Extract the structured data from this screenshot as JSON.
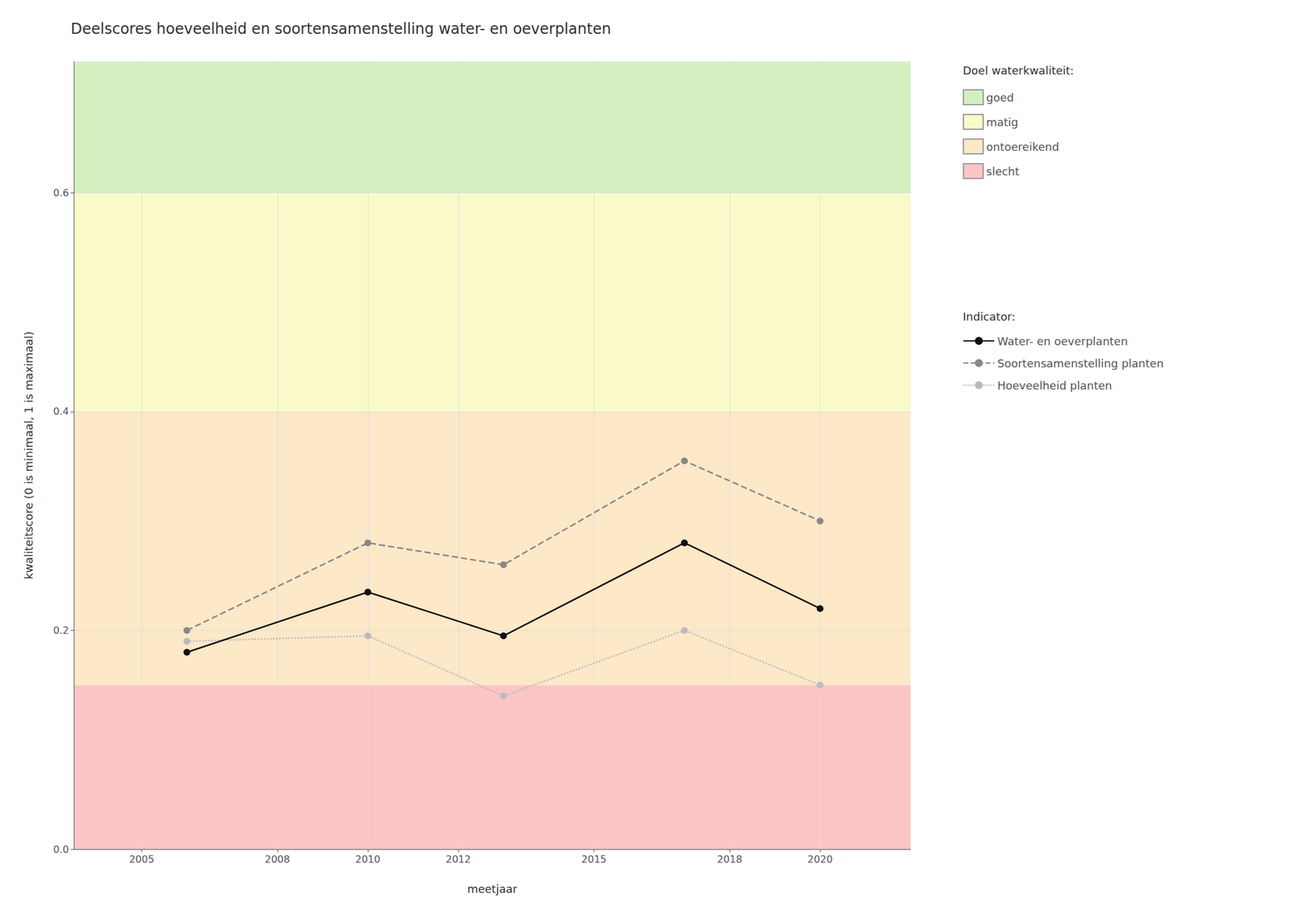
{
  "chart_data": {
    "type": "line",
    "title": "Deelscores hoeveelheid en soortensamenstelling water- en oeverplanten",
    "xlabel": "meetjaar",
    "ylabel": "kwaliteitscore (0 is minimaal, 1 is maximaal)",
    "xlim": [
      2003.5,
      2022
    ],
    "ylim": [
      0.0,
      0.72
    ],
    "xticks": [
      2005,
      2008,
      2010,
      2012,
      2015,
      2018,
      2020
    ],
    "yticks": [
      {
        "value": 0.0,
        "label": "0.0"
      },
      0.2,
      0.4,
      0.6
    ],
    "grid": true,
    "legend": "right",
    "band_legend_title": "Doel waterkwaliteit:",
    "series_legend_title": "Indicator:",
    "bands": [
      {
        "name": "slecht",
        "ymin": 0.0,
        "ymax": 0.15,
        "color": "#fcc5c5"
      },
      {
        "name": "ontoereikend",
        "ymin": 0.15,
        "ymax": 0.4,
        "color": "#fde8c8"
      },
      {
        "name": "matig",
        "ymin": 0.4,
        "ymax": 0.6,
        "color": "#fafac8"
      },
      {
        "name": "goed",
        "ymin": 0.6,
        "ymax": 0.72,
        "color": "#d4f0c0"
      }
    ],
    "series": [
      {
        "name": "Water- en oeverplanten",
        "color": "#111111",
        "line_style": "solid",
        "marker": "circle",
        "x": [
          2006,
          2010,
          2013,
          2017,
          2020
        ],
        "values": [
          0.18,
          0.235,
          0.195,
          0.28,
          0.22
        ]
      },
      {
        "name": "Soortensamenstelling planten",
        "color": "#888888",
        "line_style": "dashed",
        "marker": "circle",
        "x": [
          2006,
          2010,
          2013,
          2017,
          2020
        ],
        "values": [
          0.2,
          0.28,
          0.26,
          0.355,
          0.3
        ]
      },
      {
        "name": "Hoeveelheid planten",
        "color": "#bbbbbb",
        "line_style": "dotted",
        "marker": "circle",
        "x": [
          2006,
          2010,
          2013,
          2017,
          2020
        ],
        "values": [
          0.19,
          0.195,
          0.14,
          0.2,
          0.15
        ]
      }
    ]
  }
}
